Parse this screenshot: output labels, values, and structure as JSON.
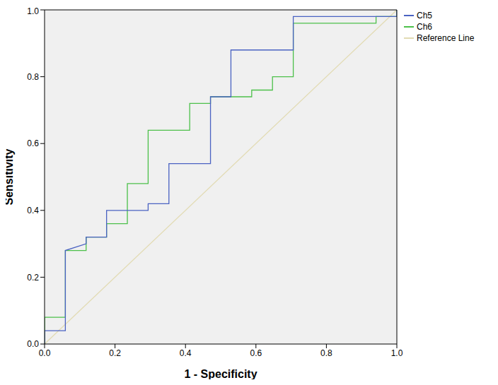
{
  "chart_data": {
    "type": "line",
    "x_label": "1 - Specificity",
    "y_label": "Sensitivity",
    "xlim": [
      0,
      1
    ],
    "ylim": [
      0,
      1
    ],
    "xticks": [
      {
        "value": 0,
        "label": "0.0"
      },
      {
        "value": 0.2,
        "label": "0.2"
      },
      {
        "value": 0.4,
        "label": "0.4"
      },
      {
        "value": 0.6,
        "label": "0.6"
      },
      {
        "value": 0.8,
        "label": "0.8"
      },
      {
        "value": 1,
        "label": "1.0"
      }
    ],
    "yticks": [
      {
        "value": 0,
        "label": "0.0"
      },
      {
        "value": 0.2,
        "label": "0.2"
      },
      {
        "value": 0.4,
        "label": "0.4"
      },
      {
        "value": 0.6,
        "label": "0.6"
      },
      {
        "value": 0.8,
        "label": "0.8"
      },
      {
        "value": 1,
        "label": "1.0"
      }
    ],
    "grid": false,
    "legend": "right",
    "series": [
      {
        "name": "Ch5",
        "color": "#4a62c2",
        "x": [
          0,
          0,
          0.059,
          0.059,
          0.118,
          0.118,
          0.176,
          0.176,
          0.294,
          0.294,
          0.353,
          0.353,
          0.471,
          0.471,
          0.529,
          0.529,
          0.706,
          0.706,
          1,
          1
        ],
        "values": [
          0,
          0.04,
          0.04,
          0.28,
          0.3,
          0.32,
          0.32,
          0.4,
          0.4,
          0.42,
          0.42,
          0.54,
          0.54,
          0.74,
          0.74,
          0.88,
          0.88,
          0.98,
          0.98,
          1
        ]
      },
      {
        "name": "Ch6",
        "color": "#4cc04a",
        "x": [
          0,
          0,
          0.059,
          0.059,
          0.118,
          0.118,
          0.176,
          0.176,
          0.235,
          0.235,
          0.294,
          0.294,
          0.412,
          0.412,
          0.471,
          0.471,
          0.588,
          0.588,
          0.647,
          0.647,
          0.706,
          0.706,
          0.941,
          0.941,
          1,
          1
        ],
        "values": [
          0,
          0.08,
          0.08,
          0.28,
          0.28,
          0.32,
          0.32,
          0.36,
          0.36,
          0.48,
          0.48,
          0.64,
          0.64,
          0.72,
          0.72,
          0.74,
          0.74,
          0.76,
          0.76,
          0.8,
          0.8,
          0.96,
          0.96,
          0.98,
          0.98,
          1
        ]
      },
      {
        "name": "Reference Line",
        "color": "#e2dbb4",
        "x": [
          0,
          1
        ],
        "values": [
          0,
          1
        ]
      }
    ]
  }
}
